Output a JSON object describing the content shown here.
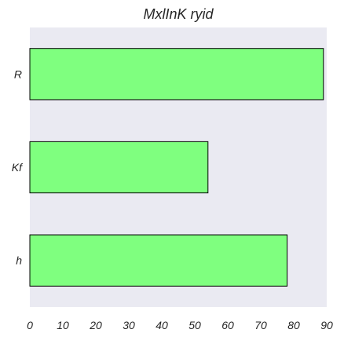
{
  "chart_data": {
    "type": "bar",
    "orientation": "horizontal",
    "title": "MxlInK  ryid",
    "xlabel": "",
    "ylabel": "",
    "categories": [
      "R",
      "Kf",
      "h"
    ],
    "values": [
      89,
      54,
      78
    ],
    "xlim": [
      0,
      90
    ],
    "xticks": [
      0,
      10,
      20,
      30,
      40,
      50,
      60,
      70,
      80,
      90
    ],
    "grid": false,
    "bar_color": "#7fff7f",
    "bar_edge_color": "#000000",
    "plot_background": "#eaeaf2"
  }
}
